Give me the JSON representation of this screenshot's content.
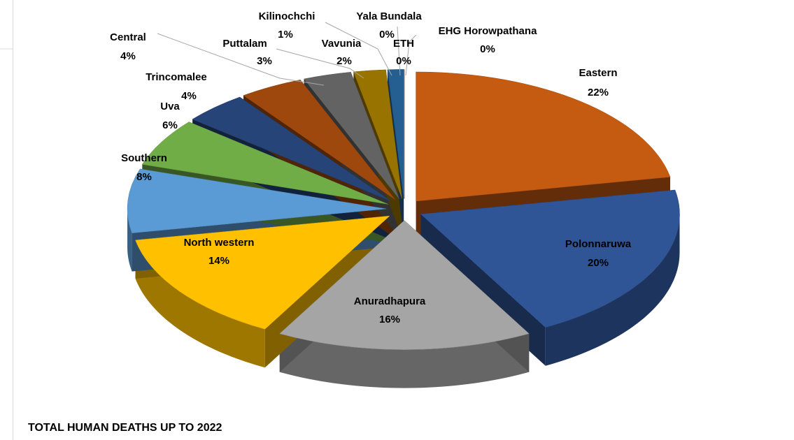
{
  "chart_data": {
    "type": "pie",
    "title": "TOTAL HUMAN DEATHS UP TO 2022",
    "categories": [
      "Eastern",
      "Polonnaruwa",
      "Anuradhapura",
      "North western",
      "Southern",
      "Uva",
      "Trincomalee",
      "Central",
      "Puttalam",
      "Vavunia",
      "Kilinochchi",
      "Yala Bundala",
      "ETH",
      "EHG Horowpathana"
    ],
    "values": [
      22,
      20,
      16,
      14,
      8,
      6,
      4,
      4,
      3,
      2,
      1,
      0,
      0,
      0
    ],
    "value_labels": [
      "22%",
      "20%",
      "16%",
      "14%",
      "8%",
      "6%",
      "4%",
      "4%",
      "3%",
      "2%",
      "1%",
      "0%",
      "0%",
      "0%"
    ],
    "colors": [
      "#c55a11",
      "#2f5597",
      "#a5a5a5",
      "#ffc000",
      "#5b9bd5",
      "#70ad47",
      "#264478",
      "#9e480e",
      "#636363",
      "#997300",
      "#255e91",
      "#43682b",
      "#698ed0",
      "#f1975a"
    ]
  }
}
